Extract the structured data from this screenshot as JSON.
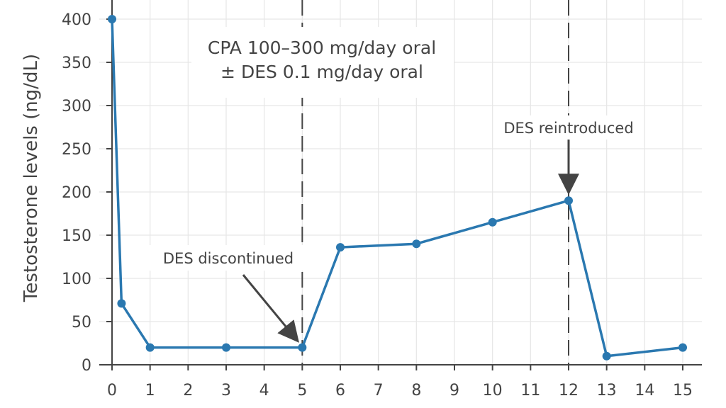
{
  "chart_data": {
    "type": "line",
    "title": "",
    "xlabel": "",
    "ylabel": "Testosterone levels (ng/dL)",
    "x": [
      0,
      0.25,
      1,
      3,
      5,
      6,
      8,
      10,
      12,
      13,
      15
    ],
    "series": [
      {
        "name": "Testosterone",
        "values": [
          400,
          71,
          20,
          20,
          20,
          136,
          140,
          165,
          190,
          10,
          20
        ]
      }
    ],
    "xlim": [
      0,
      15
    ],
    "ylim": [
      0,
      400
    ],
    "xticks": [
      0,
      1,
      2,
      3,
      4,
      5,
      6,
      7,
      8,
      9,
      10,
      11,
      12,
      13,
      14,
      15
    ],
    "xtick_labels": [
      "0",
      "1",
      "2",
      "3",
      "4",
      "5",
      "6",
      "7",
      "8",
      "9",
      "10",
      "11",
      "12",
      "13",
      "14",
      "15"
    ],
    "yticks": [
      0,
      50,
      100,
      150,
      200,
      250,
      300,
      350,
      400
    ],
    "ytick_labels": [
      "0",
      "50",
      "100",
      "150",
      "200",
      "250",
      "300",
      "350",
      "400"
    ],
    "grid": true,
    "vertical_lines": [
      5,
      12
    ],
    "annotations": [
      {
        "lines": [
          "CPA 100–300 mg/day oral",
          "± DES 0.1 mg/day oral"
        ],
        "x": 5,
        "position": "top, left of line"
      },
      {
        "lines": [
          "DES discontinued"
        ],
        "x": 5,
        "y": 20,
        "arrow": true
      },
      {
        "lines": [
          "DES reintroduced"
        ],
        "x": 12,
        "y": 190,
        "arrow": true
      }
    ],
    "colors": {
      "series": "#2a78b0",
      "axis": "#444444",
      "grid": "#e6e6e6"
    }
  }
}
